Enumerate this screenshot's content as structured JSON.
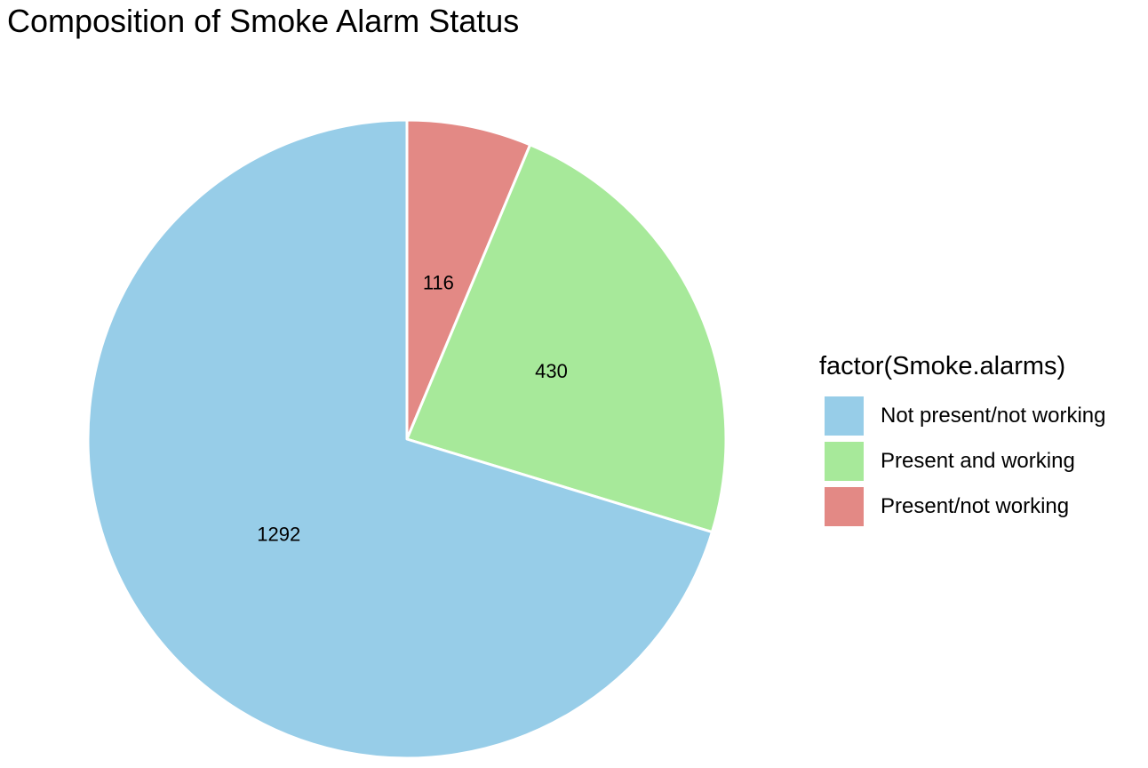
{
  "chart_data": {
    "type": "pie",
    "title": "Composition of Smoke Alarm Status",
    "legend_title": "factor(Smoke.alarms)",
    "legend_position": "right",
    "direction": "clockwise from top",
    "slice_order": [
      "Present/not working",
      "Present and working",
      "Not present/not working"
    ],
    "categories": [
      "Not present/not working",
      "Present and working",
      "Present/not working"
    ],
    "values": [
      1292,
      430,
      116
    ],
    "labels": [
      "1292",
      "430",
      "116"
    ],
    "colors": [
      "#97CDE8",
      "#A7E99A",
      "#E38985"
    ],
    "slice_border_color": "#FFFFFF"
  }
}
